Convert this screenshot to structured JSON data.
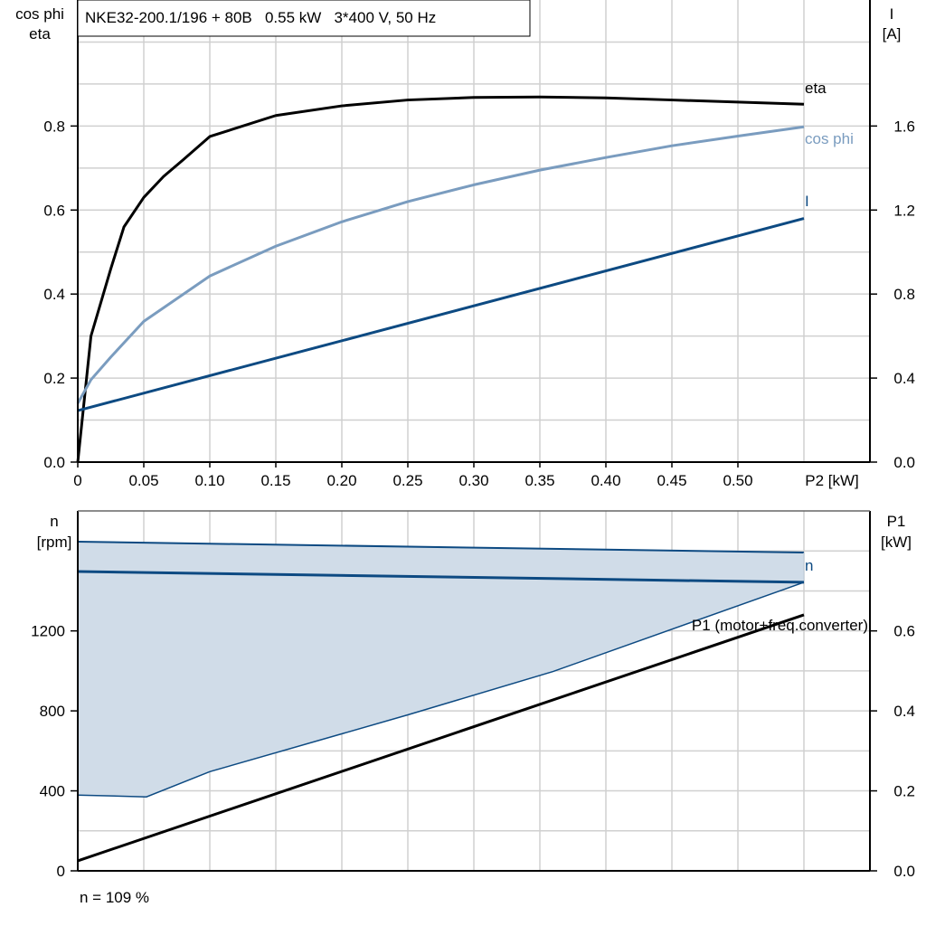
{
  "chart_data": [
    {
      "type": "line",
      "title": "NKE32-200.1/196 + 80B   0.55 kW   3*400 V, 50 Hz",
      "xlabel": "P2 [kW]",
      "ylabel_left": [
        "cos phi",
        "eta"
      ],
      "ylabel_right": [
        "I",
        "[A]"
      ],
      "xlim": [
        0,
        0.6
      ],
      "ylim_left": [
        0,
        1.1
      ],
      "ylim_right": [
        0,
        2.2
      ],
      "grid": true,
      "x_ticks": [
        "0",
        "0.05",
        "0.10",
        "0.15",
        "0.20",
        "0.25",
        "0.30",
        "0.35",
        "0.40",
        "0.45",
        "0.50"
      ],
      "y_left_ticks": [
        "0.0",
        "0.2",
        "0.4",
        "0.6",
        "0.8"
      ],
      "y_right_ticks": [
        "0.0",
        "0.4",
        "0.8",
        "1.2",
        "1.6"
      ],
      "series": [
        {
          "name": "eta",
          "axis": "left",
          "color": "#000000",
          "x": [
            0,
            0.01,
            0.025,
            0.035,
            0.05,
            0.065,
            0.08,
            0.1,
            0.15,
            0.2,
            0.25,
            0.3,
            0.35,
            0.4,
            0.45,
            0.5,
            0.55
          ],
          "y": [
            0,
            0.3,
            0.46,
            0.56,
            0.63,
            0.68,
            0.72,
            0.775,
            0.825,
            0.848,
            0.862,
            0.868,
            0.869,
            0.867,
            0.862,
            0.857,
            0.852
          ]
        },
        {
          "name": "cos phi",
          "axis": "left",
          "color": "#7a9cbf",
          "x": [
            0,
            0.01,
            0.025,
            0.05,
            0.1,
            0.15,
            0.2,
            0.25,
            0.3,
            0.35,
            0.4,
            0.45,
            0.5,
            0.55
          ],
          "y": [
            0.14,
            0.196,
            0.25,
            0.335,
            0.443,
            0.514,
            0.572,
            0.62,
            0.66,
            0.695,
            0.725,
            0.753,
            0.776,
            0.798
          ]
        },
        {
          "name": "I",
          "axis": "right",
          "color": "#0d4a82",
          "x": [
            0,
            0.55
          ],
          "y": [
            0.245,
            1.16
          ]
        }
      ]
    },
    {
      "type": "line",
      "xlim": [
        0,
        0.6
      ],
      "ylabel_left": [
        "n",
        "[rpm]"
      ],
      "ylabel_right": [
        "P1",
        "[kW]"
      ],
      "ylim_left": [
        0,
        1800
      ],
      "ylim_right": [
        0,
        0.9
      ],
      "grid": true,
      "y_left_ticks": [
        "0",
        "400",
        "800",
        "1200"
      ],
      "y_right_ticks": [
        "0.0",
        "0.2",
        "0.4",
        "0.6"
      ],
      "band": {
        "color": "#d0dce8",
        "edge_color": "#0d4a82",
        "upper": {
          "x": [
            0,
            0.55
          ],
          "y": [
            1646,
            1592
          ]
        },
        "lower": {
          "x": [
            0,
            0.052,
            0.1,
            0.25,
            0.36,
            0.55
          ],
          "y": [
            379,
            370,
            496,
            780,
            997,
            1443
          ]
        }
      },
      "series": [
        {
          "name": "n",
          "axis": "left",
          "color": "#0d4a82",
          "x": [
            0,
            0.55
          ],
          "y": [
            1497,
            1443
          ]
        },
        {
          "name": "P1 (motor+freq.converter)",
          "axis": "right",
          "color": "#000000",
          "x": [
            0,
            0.55
          ],
          "y": [
            0.025,
            0.64
          ]
        }
      ],
      "annotation": "n = 109 %"
    }
  ]
}
